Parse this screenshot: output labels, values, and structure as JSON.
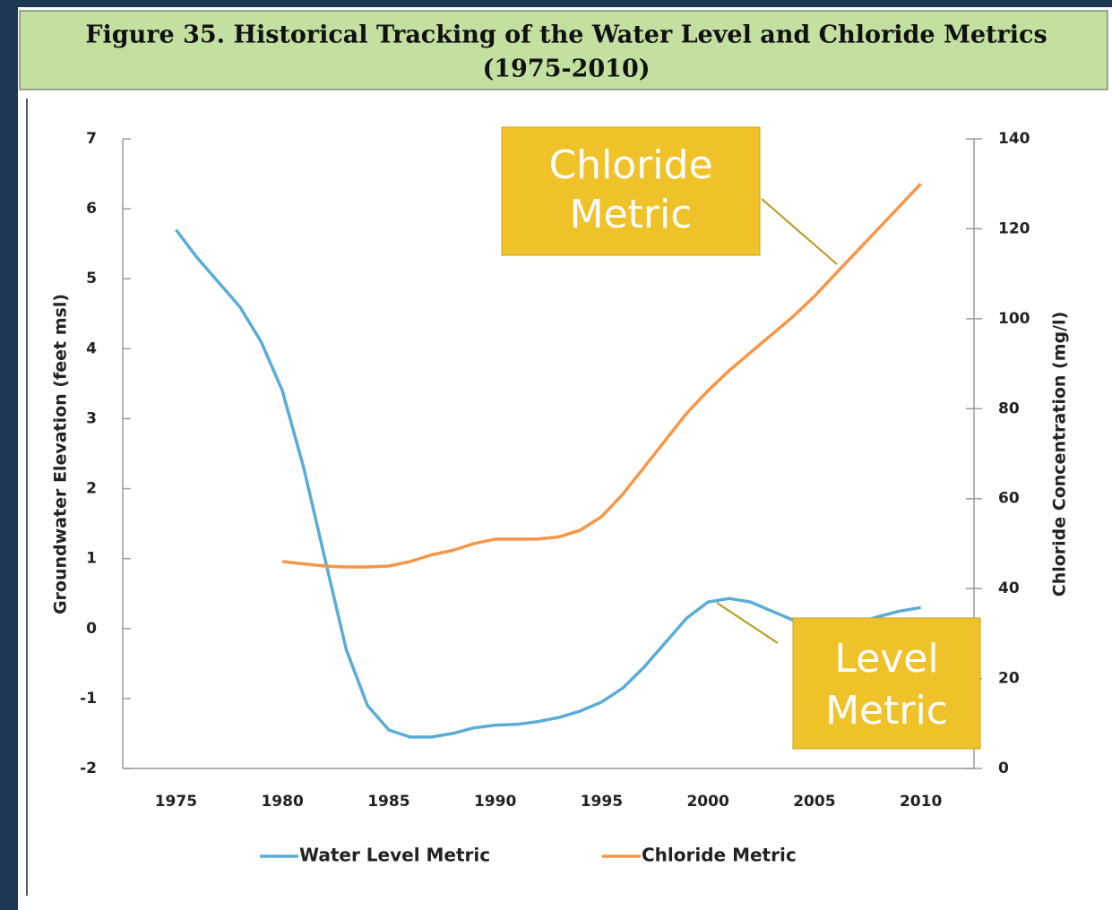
{
  "chart_data": {
    "type": "line",
    "title": "Figure 35.  Historical Tracking of the Water Level and Chloride Metrics",
    "subtitle": "(1975-2010)",
    "y_label": "Groundwater Elevation (feet msl)",
    "y2_label": "Chloride Concentration (mg/l)",
    "x": [
      1975,
      1976,
      1977,
      1978,
      1979,
      1980,
      1981,
      1982,
      1983,
      1984,
      1985,
      1986,
      1987,
      1988,
      1989,
      1990,
      1991,
      1992,
      1993,
      1994,
      1995,
      1996,
      1997,
      1998,
      1999,
      2000,
      2001,
      2002,
      2003,
      2004,
      2005,
      2006,
      2007,
      2008,
      2009,
      2010
    ],
    "xlim": [
      1972.5,
      2012.5
    ],
    "xticks": [
      1975,
      1980,
      1985,
      1990,
      1995,
      2000,
      2005,
      2010
    ],
    "ylim": [
      -2,
      7
    ],
    "yticks": [
      -2,
      -1,
      0,
      1,
      2,
      3,
      4,
      5,
      6,
      7
    ],
    "y2lim": [
      0,
      140
    ],
    "y2ticks": [
      0,
      20,
      40,
      60,
      80,
      100,
      120,
      140
    ],
    "series": [
      {
        "name": "Water Level Metric",
        "color": "#5aacd6",
        "values": [
          5.7,
          5.3,
          4.95,
          4.6,
          4.1,
          3.4,
          2.3,
          1.0,
          -0.3,
          -1.1,
          -1.45,
          -1.55,
          -1.55,
          -1.5,
          -1.42,
          -1.38,
          -1.37,
          -1.33,
          -1.27,
          -1.18,
          -1.05,
          -0.85,
          -0.55,
          -0.2,
          0.15,
          0.38,
          0.43,
          0.38,
          0.25,
          0.12,
          0.05,
          0.03,
          0.08,
          0.17,
          0.25,
          0.3
        ]
      },
      {
        "name": "Chloride Metric",
        "color": "#f79646",
        "axis": "y2",
        "values": [
          null,
          null,
          null,
          null,
          null,
          46,
          45.5,
          45,
          44.8,
          44.8,
          45,
          46,
          47.5,
          48.5,
          50,
          51,
          51,
          51,
          51.5,
          53,
          56,
          61,
          67,
          73,
          79,
          84,
          88.5,
          92.5,
          96.5,
          100.5,
          105,
          110,
          115,
          120,
          125,
          130
        ]
      }
    ],
    "annotations": [
      [
        "Chloride",
        "Metric"
      ],
      [
        "Level",
        "Metric"
      ]
    ]
  }
}
